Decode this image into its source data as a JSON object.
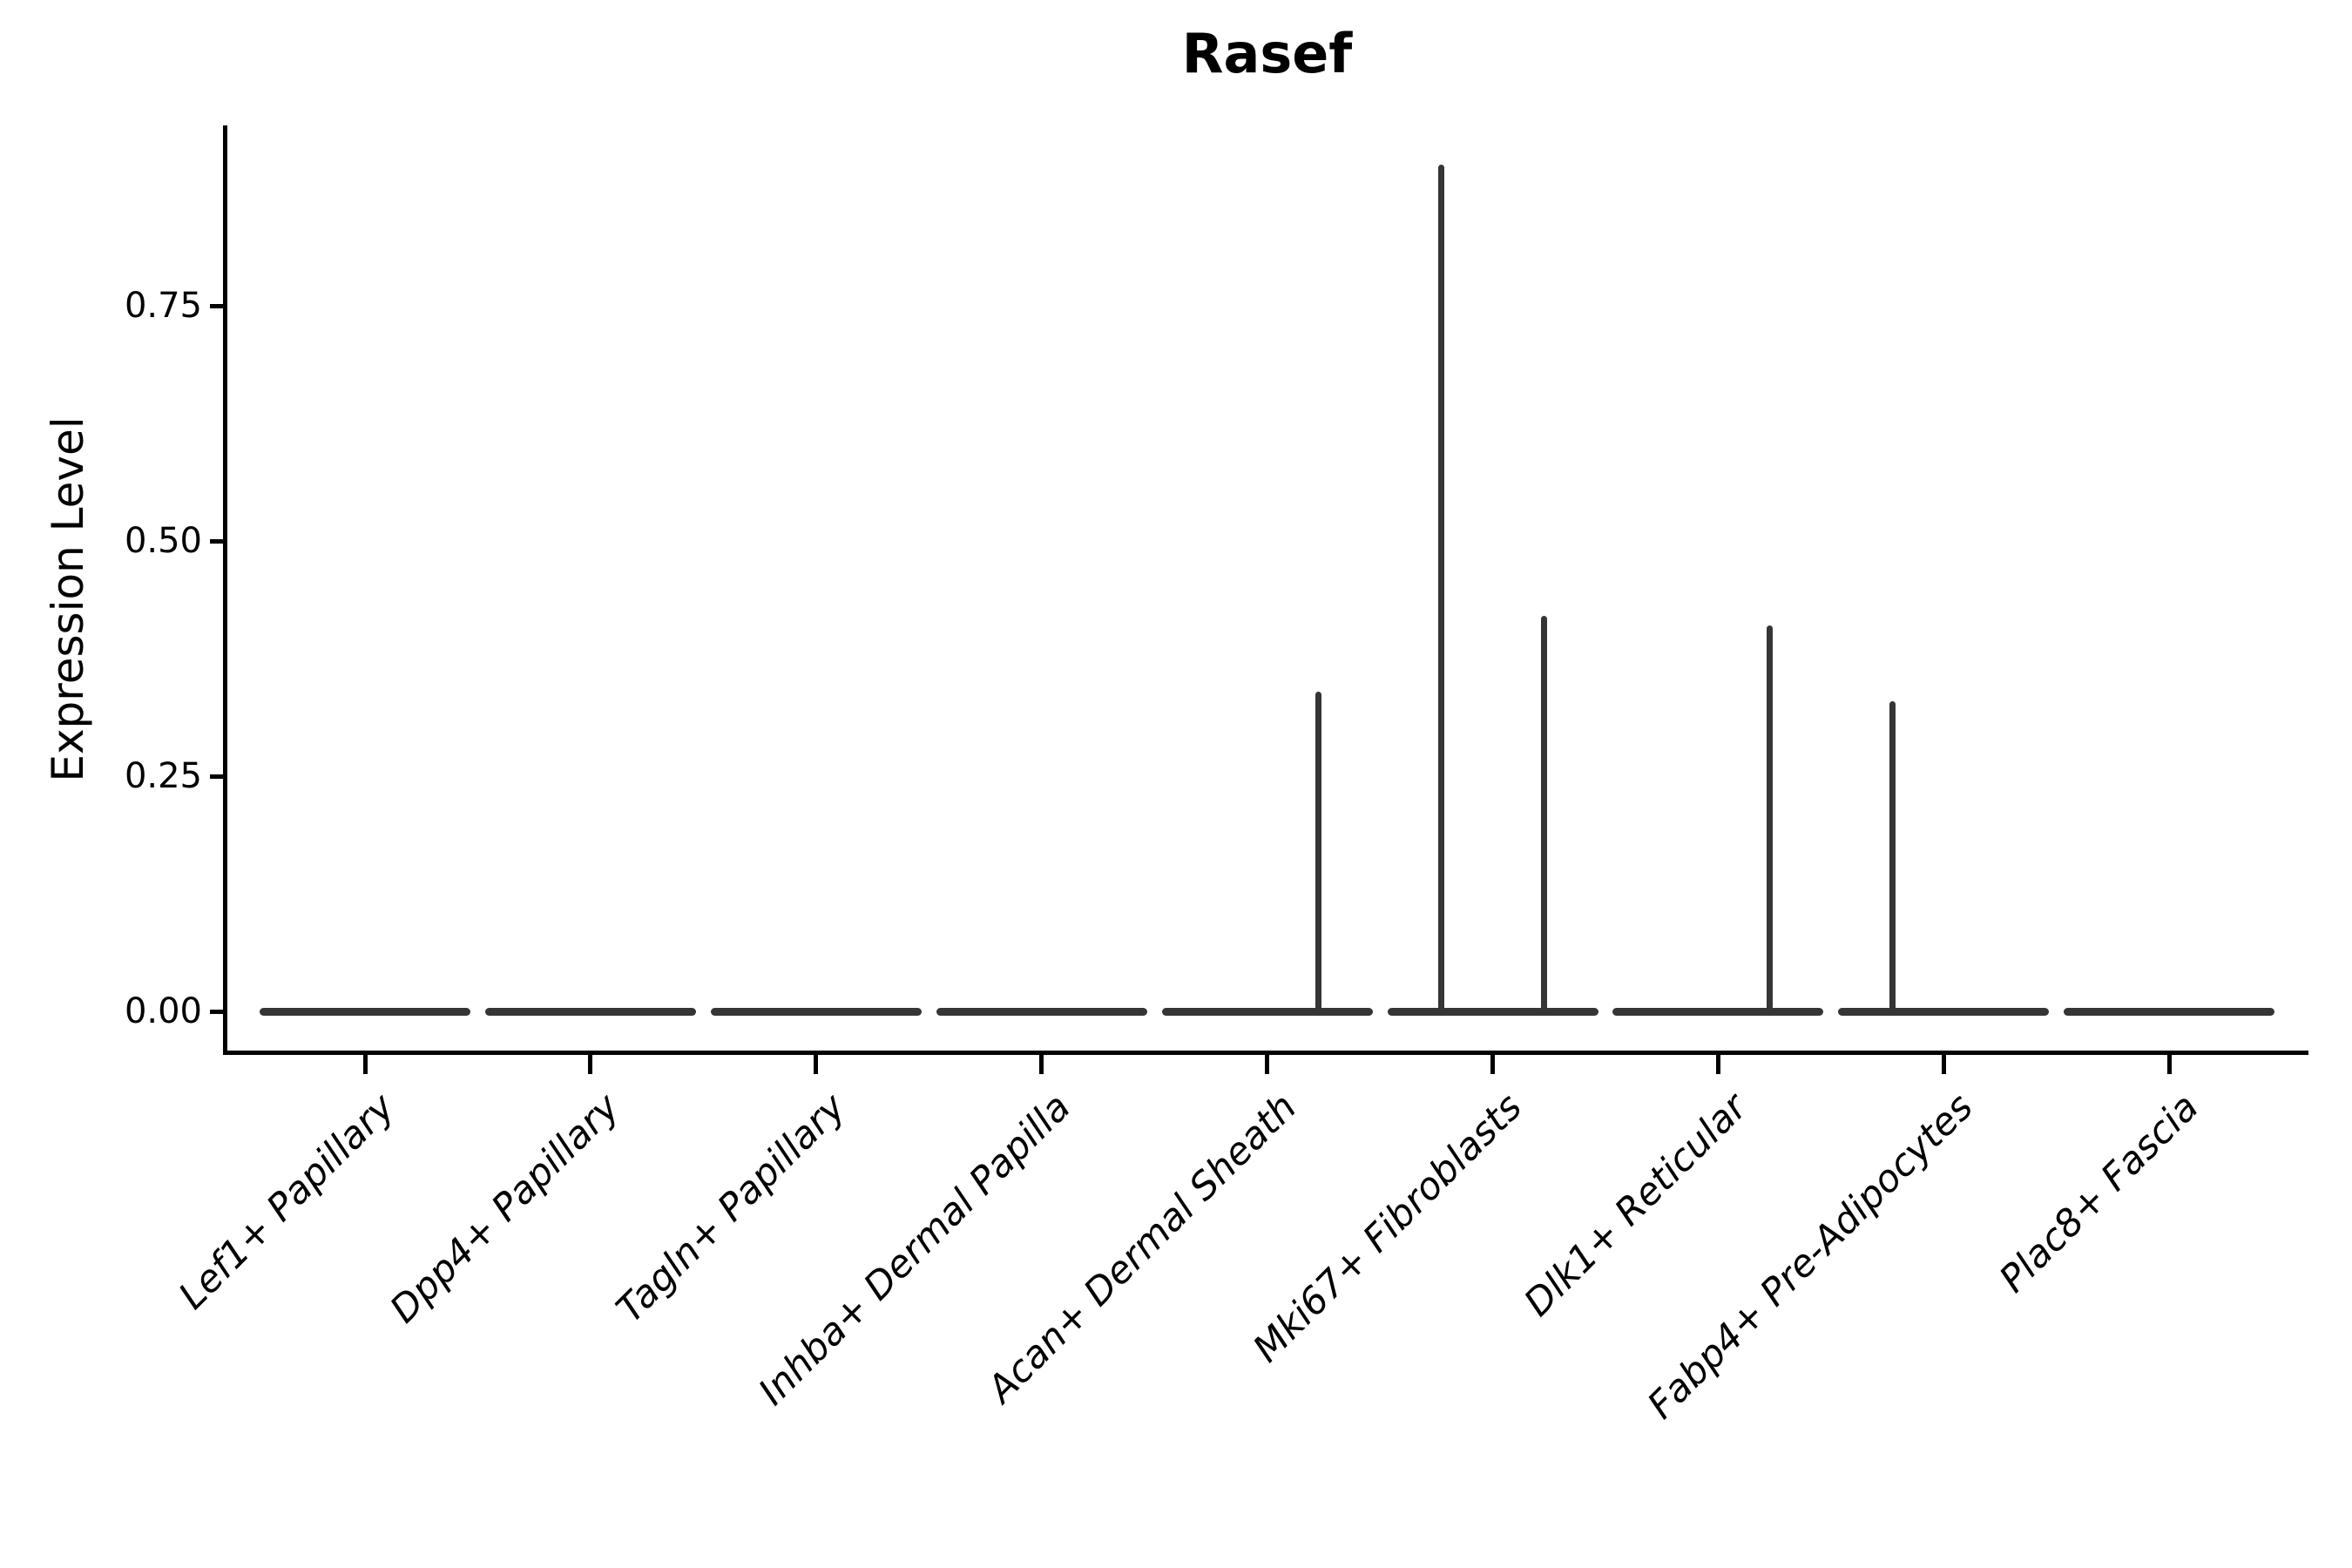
{
  "chart_data": {
    "type": "violin",
    "title": "Rasef",
    "ylabel": "Expression Level",
    "xlabel": "",
    "ytick_labels": [
      "0.00",
      "0.25",
      "0.50",
      "0.75"
    ],
    "ytick_values": [
      0,
      0.25,
      0.5,
      0.75
    ],
    "ylim": [
      0,
      0.94
    ],
    "grid": "off",
    "legend": "none",
    "categories": [
      "Lef1+ Papillary",
      "Dpp4+ Papillary",
      "Tagln+ Papillary",
      "Inhba+ Dermal Papilla",
      "Acan+ Dermal Sheath",
      "Mki67+ Fibroblasts",
      "Dlk1+ Reticular",
      "Fabp4+ Pre-Adipocytes",
      "Plac8+ Fascia"
    ],
    "violins": [
      {
        "category": "Lef1+ Papillary",
        "baseline_value": 0,
        "spikes": []
      },
      {
        "category": "Dpp4+ Papillary",
        "baseline_value": 0,
        "spikes": []
      },
      {
        "category": "Tagln+ Papillary",
        "baseline_value": 0,
        "spikes": []
      },
      {
        "category": "Inhba+ Dermal Papilla",
        "baseline_value": 0,
        "spikes": []
      },
      {
        "category": "Acan+ Dermal Sheath",
        "baseline_value": 0,
        "spikes": [
          {
            "side": "right",
            "max_expression": 0.34
          }
        ]
      },
      {
        "category": "Mki67+ Fibroblasts",
        "baseline_value": 0,
        "spikes": [
          {
            "side": "left",
            "max_expression": 0.9
          },
          {
            "side": "right",
            "max_expression": 0.42
          }
        ]
      },
      {
        "category": "Dlk1+ Reticular",
        "baseline_value": 0,
        "spikes": [
          {
            "side": "right",
            "max_expression": 0.41
          }
        ]
      },
      {
        "category": "Fabp4+ Pre-Adipocytes",
        "baseline_value": 0,
        "spikes": [
          {
            "side": "left",
            "max_expression": 0.33
          }
        ]
      },
      {
        "category": "Plac8+ Fascia",
        "baseline_value": 0,
        "spikes": []
      }
    ],
    "colors": {
      "violin": "#353535",
      "axis": "#000000",
      "text": "#000000",
      "background": "#ffffff"
    }
  }
}
